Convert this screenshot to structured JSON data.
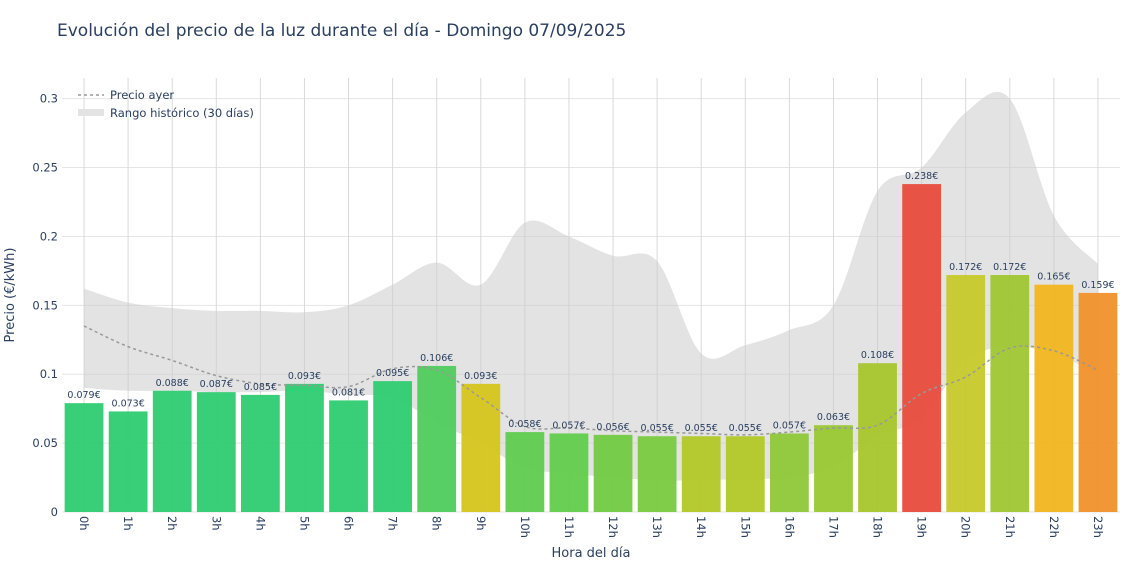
{
  "chart_data": {
    "type": "bar",
    "title": "Evolución del precio de la luz durante el día - Domingo 07/09/2025",
    "xlabel": "Hora del día",
    "ylabel": "Precio (€/kWh)",
    "ylim": [
      0,
      0.315
    ],
    "yticks": [
      0,
      0.05,
      0.1,
      0.15,
      0.2,
      0.25,
      0.3
    ],
    "ytick_labels": [
      "0",
      "0.05",
      "0.1",
      "0.15",
      "0.2",
      "0.25",
      "0.3"
    ],
    "grid": true,
    "categories": [
      "0h",
      "1h",
      "2h",
      "3h",
      "4h",
      "5h",
      "6h",
      "7h",
      "8h",
      "9h",
      "10h",
      "11h",
      "12h",
      "13h",
      "14h",
      "15h",
      "16h",
      "17h",
      "18h",
      "19h",
      "20h",
      "21h",
      "22h",
      "23h"
    ],
    "values": [
      0.079,
      0.073,
      0.088,
      0.087,
      0.085,
      0.093,
      0.081,
      0.095,
      0.106,
      0.093,
      0.058,
      0.057,
      0.056,
      0.055,
      0.055,
      0.055,
      0.057,
      0.063,
      0.108,
      0.238,
      0.172,
      0.172,
      0.165,
      0.159
    ],
    "value_labels": [
      "0.079€",
      "0.073€",
      "0.088€",
      "0.087€",
      "0.085€",
      "0.093€",
      "0.081€",
      "0.095€",
      "0.106€",
      "0.093€",
      "0.058€",
      "0.057€",
      "0.056€",
      "0.055€",
      "0.055€",
      "0.055€",
      "0.057€",
      "0.063€",
      "0.108€",
      "0.238€",
      "0.172€",
      "0.172€",
      "0.165€",
      "0.159€"
    ],
    "bar_colors": [
      "#2ecc71",
      "#2ecc71",
      "#2ecc71",
      "#2ecc71",
      "#2ecc71",
      "#2ecc71",
      "#2ecc71",
      "#2ecc71",
      "#4fcc5d",
      "#d5c51c",
      "#5fcc4e",
      "#62cc4c",
      "#72ca42",
      "#78ca3f",
      "#b2c826",
      "#b2c826",
      "#8ec838",
      "#98c832",
      "#a7c52c",
      "#e74c3c",
      "#c7c92a",
      "#9fc631",
      "#f1b51f",
      "#f0912b"
    ],
    "previous_day": {
      "name": "Precio ayer",
      "values": [
        0.135,
        0.12,
        0.11,
        0.099,
        0.093,
        0.092,
        0.091,
        0.104,
        0.103,
        0.083,
        0.062,
        0.061,
        0.059,
        0.058,
        0.057,
        0.056,
        0.058,
        0.061,
        0.063,
        0.086,
        0.098,
        0.119,
        0.117,
        0.103
      ]
    },
    "historical_range": {
      "name": "Rango histórico (30 días)",
      "upper": [
        0.162,
        0.152,
        0.148,
        0.146,
        0.146,
        0.145,
        0.15,
        0.165,
        0.181,
        0.165,
        0.21,
        0.2,
        0.186,
        0.182,
        0.115,
        0.121,
        0.132,
        0.15,
        0.233,
        0.25,
        0.29,
        0.3,
        0.215,
        0.18
      ],
      "lower": [
        0.09,
        0.088,
        0.088,
        0.087,
        0.087,
        0.088,
        0.085,
        0.083,
        0.065,
        0.05,
        0.032,
        0.028,
        0.025,
        0.023,
        0.023,
        0.024,
        0.025,
        0.033,
        0.055,
        0.068,
        0.11,
        0.12,
        0.115,
        0.1
      ]
    },
    "legend_position": "top-left",
    "colors": {
      "range_fill": "#cccccc",
      "previous_day_line": "#999999",
      "grid": "#e5e5e5"
    }
  }
}
